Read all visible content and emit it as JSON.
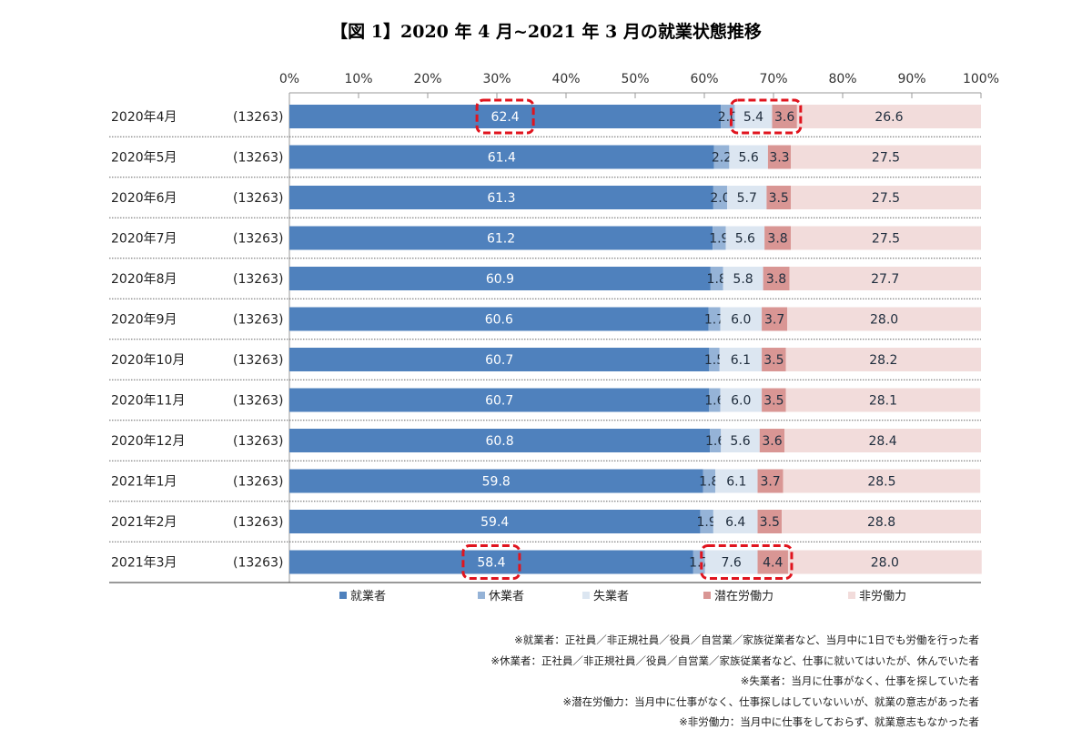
{
  "chart_data": {
    "type": "bar",
    "orientation": "horizontal",
    "stacked": true,
    "title": "【図 1】2020 年 4 月~2021 年 3 月の就業状態推移",
    "xlim": [
      0,
      100
    ],
    "xticks": [
      "0%",
      "10%",
      "20%",
      "30%",
      "40%",
      "50%",
      "60%",
      "70%",
      "80%",
      "90%",
      "100%"
    ],
    "categories": [
      "2020年4月",
      "2020年5月",
      "2020年6月",
      "2020年7月",
      "2020年8月",
      "2020年9月",
      "2020年10月",
      "2020年11月",
      "2020年12月",
      "2021年1月",
      "2021年2月",
      "2021年3月"
    ],
    "sample_sizes": [
      "(13263)",
      "(13263)",
      "(13263)",
      "(13263)",
      "(13263)",
      "(13263)",
      "(13263)",
      "(13263)",
      "(13263)",
      "(13263)",
      "(13263)",
      "(13263)"
    ],
    "series": [
      {
        "name": "就業者",
        "color": "#4f81bd",
        "label_color": "#ffffff",
        "values": [
          62.4,
          61.4,
          61.3,
          61.2,
          60.9,
          60.6,
          60.7,
          60.7,
          60.8,
          59.8,
          59.4,
          58.4
        ]
      },
      {
        "name": "休業者",
        "color": "#95b3d7",
        "label_color": "#1f2d3d",
        "values": [
          2.0,
          2.2,
          2.0,
          1.9,
          1.8,
          1.7,
          1.5,
          1.6,
          1.6,
          1.8,
          1.9,
          1.7
        ]
      },
      {
        "name": "失業者",
        "color": "#dce6f1",
        "label_color": "#1f2d3d",
        "values": [
          5.4,
          5.6,
          5.7,
          5.6,
          5.8,
          6.0,
          6.1,
          6.0,
          5.6,
          6.1,
          6.4,
          7.6
        ]
      },
      {
        "name": "潜在労働力",
        "color": "#d99694",
        "label_color": "#1f2d3d",
        "values": [
          3.6,
          3.3,
          3.5,
          3.8,
          3.8,
          3.7,
          3.5,
          3.5,
          3.6,
          3.7,
          3.5,
          4.4
        ]
      },
      {
        "name": "非労働力",
        "color": "#f2dcdb",
        "label_color": "#1f2d3d",
        "values": [
          26.6,
          27.5,
          27.5,
          27.5,
          27.7,
          28.0,
          28.2,
          28.1,
          28.4,
          28.5,
          28.8,
          28.0
        ]
      }
    ],
    "highlights": [
      {
        "row": 0,
        "from_series": 0,
        "to_series": 0
      },
      {
        "row": 0,
        "from_series": 2,
        "to_series": 3
      },
      {
        "row": 11,
        "from_series": 0,
        "to_series": 0
      },
      {
        "row": 11,
        "from_series": 2,
        "to_series": 3
      }
    ],
    "highlight_color": "#e0141e",
    "legend_position": "bottom",
    "notes": [
      "※就業者：正社員／非正規社員／役員／自営業／家族従業者など、当月中に1日でも労働を行った者",
      "※休業者：正社員／非正規社員／役員／自営業／家族従業者など、仕事に就いてはいたが、休んでいた者",
      "※失業者：当月に仕事がなく、仕事を探していた者",
      "※潜在労働力：当月中に仕事がなく、仕事探しはしていないいが、就業の意志があった者",
      "※非労働力：当月中に仕事をしておらず、就業意志もなかった者"
    ]
  }
}
